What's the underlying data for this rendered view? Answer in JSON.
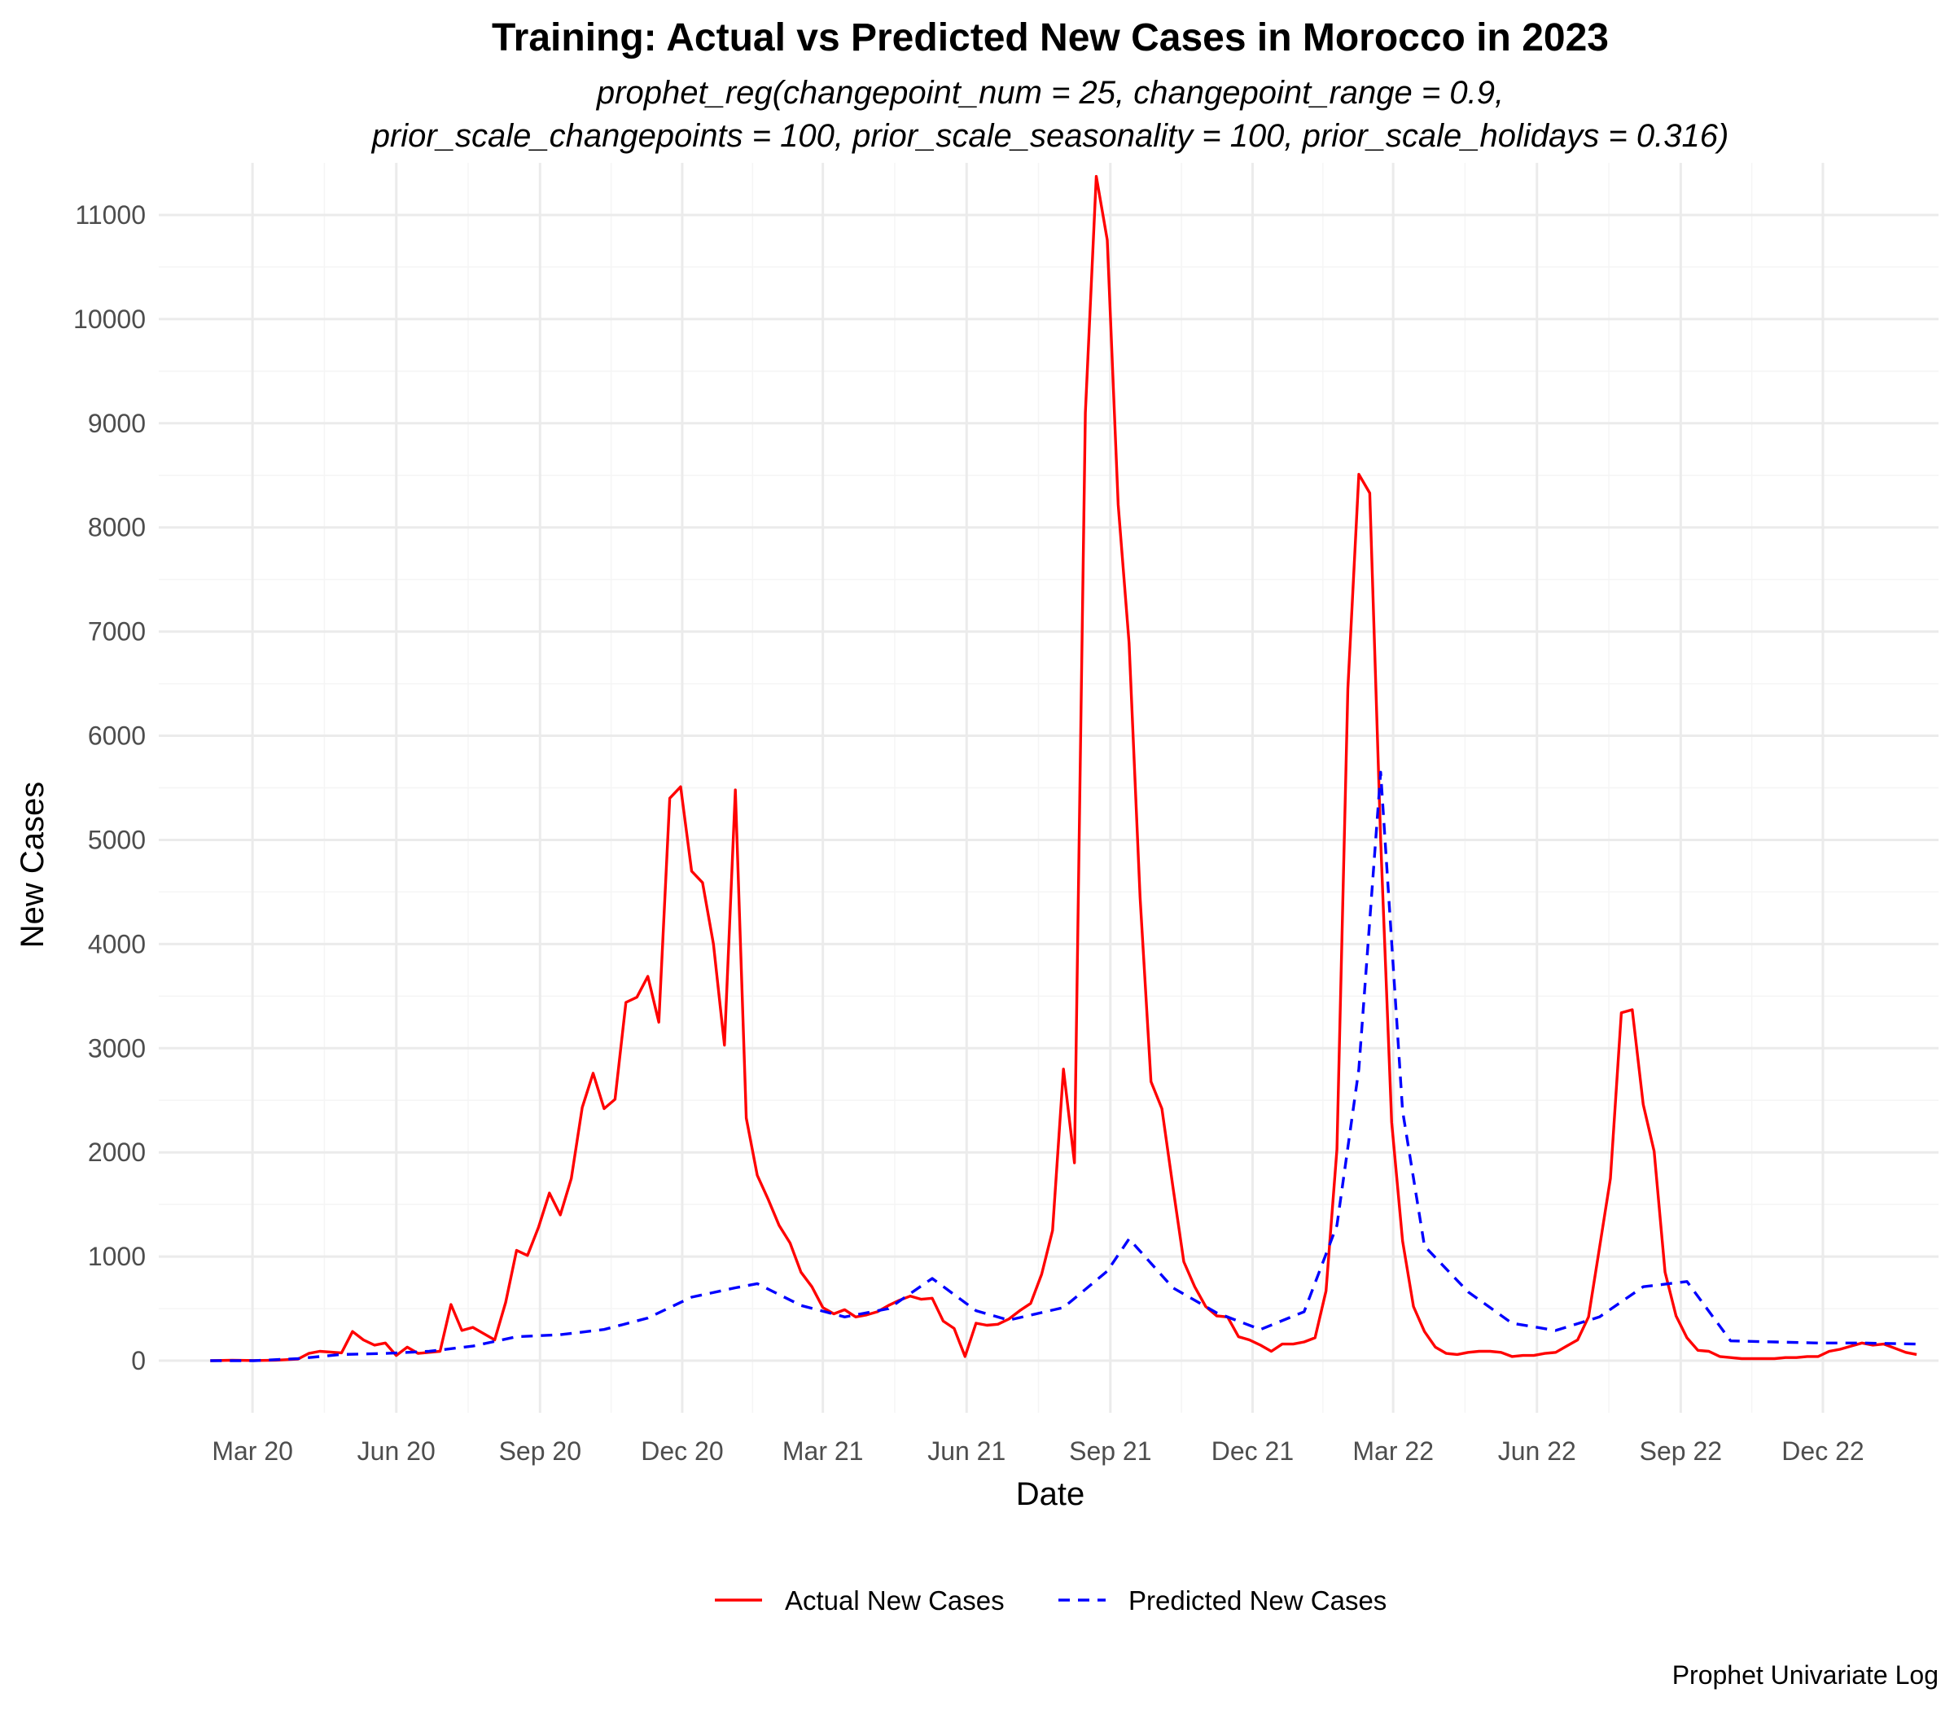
{
  "chart_data": {
    "type": "line",
    "title": "Training: Actual vs Predicted New Cases in Morocco in 2023",
    "subtitle_line1": "prophet_reg(changepoint_num = 25, changepoint_range = 0.9,",
    "subtitle_line2": "prior_scale_changepoints = 100, prior_scale_seasonality = 100, prior_scale_holidays = 0.316)",
    "xlabel": "Date",
    "ylabel": "New Cases",
    "caption": "Prophet Univariate Log",
    "x_ticks": [
      {
        "date": "2020-03-01",
        "label": "Mar 20"
      },
      {
        "date": "2020-06-01",
        "label": "Jun 20"
      },
      {
        "date": "2020-09-01",
        "label": "Sep 20"
      },
      {
        "date": "2020-12-01",
        "label": "Dec 20"
      },
      {
        "date": "2021-03-01",
        "label": "Mar 21"
      },
      {
        "date": "2021-06-01",
        "label": "Jun 21"
      },
      {
        "date": "2021-09-01",
        "label": "Sep 21"
      },
      {
        "date": "2021-12-01",
        "label": "Dec 21"
      },
      {
        "date": "2022-03-01",
        "label": "Mar 22"
      },
      {
        "date": "2022-06-01",
        "label": "Jun 22"
      },
      {
        "date": "2022-09-01",
        "label": "Sep 22"
      },
      {
        "date": "2022-12-01",
        "label": "Dec 22"
      }
    ],
    "y_ticks": [
      0,
      1000,
      2000,
      3000,
      4000,
      5000,
      6000,
      7000,
      8000,
      9000,
      10000,
      11000
    ],
    "xlim": [
      "2020-01-01",
      "2023-02-13"
    ],
    "ylim": [
      -500,
      11500
    ],
    "grid": true,
    "legend_position": "bottom",
    "series": [
      {
        "name": "Actual New Cases",
        "color": "#ff0000",
        "dash": "solid",
        "points": [
          [
            "2020-02-03",
            0
          ],
          [
            "2020-02-17",
            5
          ],
          [
            "2020-03-02",
            2
          ],
          [
            "2020-03-16",
            5
          ],
          [
            "2020-03-30",
            15
          ],
          [
            "2020-04-06",
            70
          ],
          [
            "2020-04-13",
            90
          ],
          [
            "2020-04-27",
            75
          ],
          [
            "2020-05-04",
            280
          ],
          [
            "2020-05-11",
            200
          ],
          [
            "2020-05-18",
            150
          ],
          [
            "2020-05-25",
            170
          ],
          [
            "2020-06-01",
            50
          ],
          [
            "2020-06-08",
            130
          ],
          [
            "2020-06-15",
            70
          ],
          [
            "2020-06-22",
            80
          ],
          [
            "2020-06-29",
            90
          ],
          [
            "2020-07-06",
            540
          ],
          [
            "2020-07-13",
            290
          ],
          [
            "2020-07-20",
            320
          ],
          [
            "2020-07-27",
            260
          ],
          [
            "2020-08-03",
            200
          ],
          [
            "2020-08-10",
            560
          ],
          [
            "2020-08-17",
            1060
          ],
          [
            "2020-08-24",
            1010
          ],
          [
            "2020-08-31",
            1280
          ],
          [
            "2020-09-07",
            1610
          ],
          [
            "2020-09-14",
            1400
          ],
          [
            "2020-09-21",
            1750
          ],
          [
            "2020-09-28",
            2430
          ],
          [
            "2020-10-05",
            2760
          ],
          [
            "2020-10-12",
            2420
          ],
          [
            "2020-10-19",
            2510
          ],
          [
            "2020-10-26",
            3440
          ],
          [
            "2020-11-02",
            3490
          ],
          [
            "2020-11-09",
            3690
          ],
          [
            "2020-11-16",
            3250
          ],
          [
            "2020-11-23",
            5400
          ],
          [
            "2020-11-30",
            5510
          ],
          [
            "2020-12-07",
            4700
          ],
          [
            "2020-12-14",
            4590
          ],
          [
            "2020-12-21",
            4000
          ],
          [
            "2020-12-28",
            3030
          ],
          [
            "2021-01-04",
            5480
          ],
          [
            "2021-01-11",
            2330
          ],
          [
            "2021-01-18",
            1780
          ],
          [
            "2021-01-25",
            1550
          ],
          [
            "2021-02-01",
            1300
          ],
          [
            "2021-02-08",
            1130
          ],
          [
            "2021-02-15",
            850
          ],
          [
            "2021-02-22",
            710
          ],
          [
            "2021-03-01",
            510
          ],
          [
            "2021-03-08",
            450
          ],
          [
            "2021-03-15",
            490
          ],
          [
            "2021-03-22",
            420
          ],
          [
            "2021-03-29",
            440
          ],
          [
            "2021-04-05",
            470
          ],
          [
            "2021-04-12",
            530
          ],
          [
            "2021-04-19",
            580
          ],
          [
            "2021-04-26",
            620
          ],
          [
            "2021-05-03",
            590
          ],
          [
            "2021-05-10",
            600
          ],
          [
            "2021-05-17",
            380
          ],
          [
            "2021-05-24",
            310
          ],
          [
            "2021-05-31",
            40
          ],
          [
            "2021-06-07",
            360
          ],
          [
            "2021-06-14",
            340
          ],
          [
            "2021-06-21",
            350
          ],
          [
            "2021-06-28",
            400
          ],
          [
            "2021-07-05",
            480
          ],
          [
            "2021-07-12",
            550
          ],
          [
            "2021-07-19",
            830
          ],
          [
            "2021-07-26",
            1250
          ],
          [
            "2021-08-02",
            2800
          ],
          [
            "2021-08-09",
            1900
          ],
          [
            "2021-08-16",
            9100
          ],
          [
            "2021-08-23",
            11370
          ],
          [
            "2021-08-30",
            10760
          ],
          [
            "2021-09-06",
            8220
          ],
          [
            "2021-09-13",
            6890
          ],
          [
            "2021-09-20",
            4450
          ],
          [
            "2021-09-27",
            2680
          ],
          [
            "2021-10-04",
            2420
          ],
          [
            "2021-10-11",
            1670
          ],
          [
            "2021-10-18",
            950
          ],
          [
            "2021-10-25",
            710
          ],
          [
            "2021-11-01",
            520
          ],
          [
            "2021-11-08",
            430
          ],
          [
            "2021-11-15",
            420
          ],
          [
            "2021-11-22",
            230
          ],
          [
            "2021-11-29",
            200
          ],
          [
            "2021-12-06",
            150
          ],
          [
            "2021-12-13",
            90
          ],
          [
            "2021-12-20",
            160
          ],
          [
            "2021-12-27",
            160
          ],
          [
            "2022-01-03",
            180
          ],
          [
            "2022-01-10",
            220
          ],
          [
            "2022-01-17",
            670
          ],
          [
            "2022-01-24",
            2030
          ],
          [
            "2022-01-31",
            6450
          ],
          [
            "2022-02-07",
            8510
          ],
          [
            "2022-02-14",
            8330
          ],
          [
            "2022-02-21",
            5000
          ],
          [
            "2022-02-28",
            2290
          ],
          [
            "2022-03-07",
            1150
          ],
          [
            "2022-03-14",
            520
          ],
          [
            "2022-03-21",
            280
          ],
          [
            "2022-03-28",
            130
          ],
          [
            "2022-04-04",
            70
          ],
          [
            "2022-04-11",
            60
          ],
          [
            "2022-04-18",
            80
          ],
          [
            "2022-04-25",
            90
          ],
          [
            "2022-05-02",
            90
          ],
          [
            "2022-05-09",
            80
          ],
          [
            "2022-05-16",
            40
          ],
          [
            "2022-05-23",
            50
          ],
          [
            "2022-05-30",
            50
          ],
          [
            "2022-06-06",
            70
          ],
          [
            "2022-06-13",
            80
          ],
          [
            "2022-06-20",
            140
          ],
          [
            "2022-06-27",
            200
          ],
          [
            "2022-07-04",
            420
          ],
          [
            "2022-07-11",
            1080
          ],
          [
            "2022-07-18",
            1750
          ],
          [
            "2022-07-25",
            3340
          ],
          [
            "2022-08-01",
            3370
          ],
          [
            "2022-08-08",
            2460
          ],
          [
            "2022-08-15",
            2010
          ],
          [
            "2022-08-22",
            850
          ],
          [
            "2022-08-29",
            430
          ],
          [
            "2022-09-05",
            220
          ],
          [
            "2022-09-12",
            100
          ],
          [
            "2022-09-19",
            90
          ],
          [
            "2022-09-26",
            40
          ],
          [
            "2022-10-03",
            30
          ],
          [
            "2022-10-10",
            20
          ],
          [
            "2022-10-17",
            20
          ],
          [
            "2022-10-24",
            20
          ],
          [
            "2022-10-31",
            20
          ],
          [
            "2022-11-07",
            30
          ],
          [
            "2022-11-14",
            30
          ],
          [
            "2022-11-21",
            40
          ],
          [
            "2022-11-28",
            40
          ],
          [
            "2022-12-05",
            90
          ],
          [
            "2022-12-12",
            110
          ],
          [
            "2022-12-19",
            140
          ],
          [
            "2022-12-26",
            170
          ],
          [
            "2023-01-02",
            150
          ],
          [
            "2023-01-09",
            160
          ],
          [
            "2023-01-16",
            120
          ],
          [
            "2023-01-23",
            80
          ],
          [
            "2023-01-30",
            60
          ]
        ]
      },
      {
        "name": "Predicted New Cases",
        "color": "#0000ff",
        "dash": "dashed",
        "points": [
          [
            "2020-02-03",
            0
          ],
          [
            "2020-03-02",
            0
          ],
          [
            "2020-03-30",
            20
          ],
          [
            "2020-04-27",
            60
          ],
          [
            "2020-05-25",
            70
          ],
          [
            "2020-06-22",
            90
          ],
          [
            "2020-07-20",
            140
          ],
          [
            "2020-08-17",
            230
          ],
          [
            "2020-09-14",
            250
          ],
          [
            "2020-10-12",
            300
          ],
          [
            "2020-11-09",
            410
          ],
          [
            "2020-12-07",
            610
          ],
          [
            "2021-01-04",
            700
          ],
          [
            "2021-01-18",
            740
          ],
          [
            "2021-02-15",
            530
          ],
          [
            "2021-03-15",
            420
          ],
          [
            "2021-04-12",
            500
          ],
          [
            "2021-05-10",
            790
          ],
          [
            "2021-06-07",
            480
          ],
          [
            "2021-06-28",
            390
          ],
          [
            "2021-08-02",
            510
          ],
          [
            "2021-08-30",
            860
          ],
          [
            "2021-09-13",
            1170
          ],
          [
            "2021-10-11",
            700
          ],
          [
            "2021-11-08",
            460
          ],
          [
            "2021-12-06",
            300
          ],
          [
            "2022-01-03",
            470
          ],
          [
            "2022-01-24",
            1300
          ],
          [
            "2022-02-07",
            2800
          ],
          [
            "2022-02-21",
            5650
          ],
          [
            "2022-03-07",
            2400
          ],
          [
            "2022-03-21",
            1100
          ],
          [
            "2022-04-18",
            660
          ],
          [
            "2022-05-16",
            360
          ],
          [
            "2022-06-13",
            290
          ],
          [
            "2022-07-11",
            420
          ],
          [
            "2022-08-08",
            710
          ],
          [
            "2022-09-05",
            760
          ],
          [
            "2022-10-03",
            190
          ],
          [
            "2022-10-31",
            180
          ],
          [
            "2022-11-28",
            170
          ],
          [
            "2022-12-26",
            170
          ],
          [
            "2023-01-30",
            160
          ]
        ]
      }
    ]
  }
}
